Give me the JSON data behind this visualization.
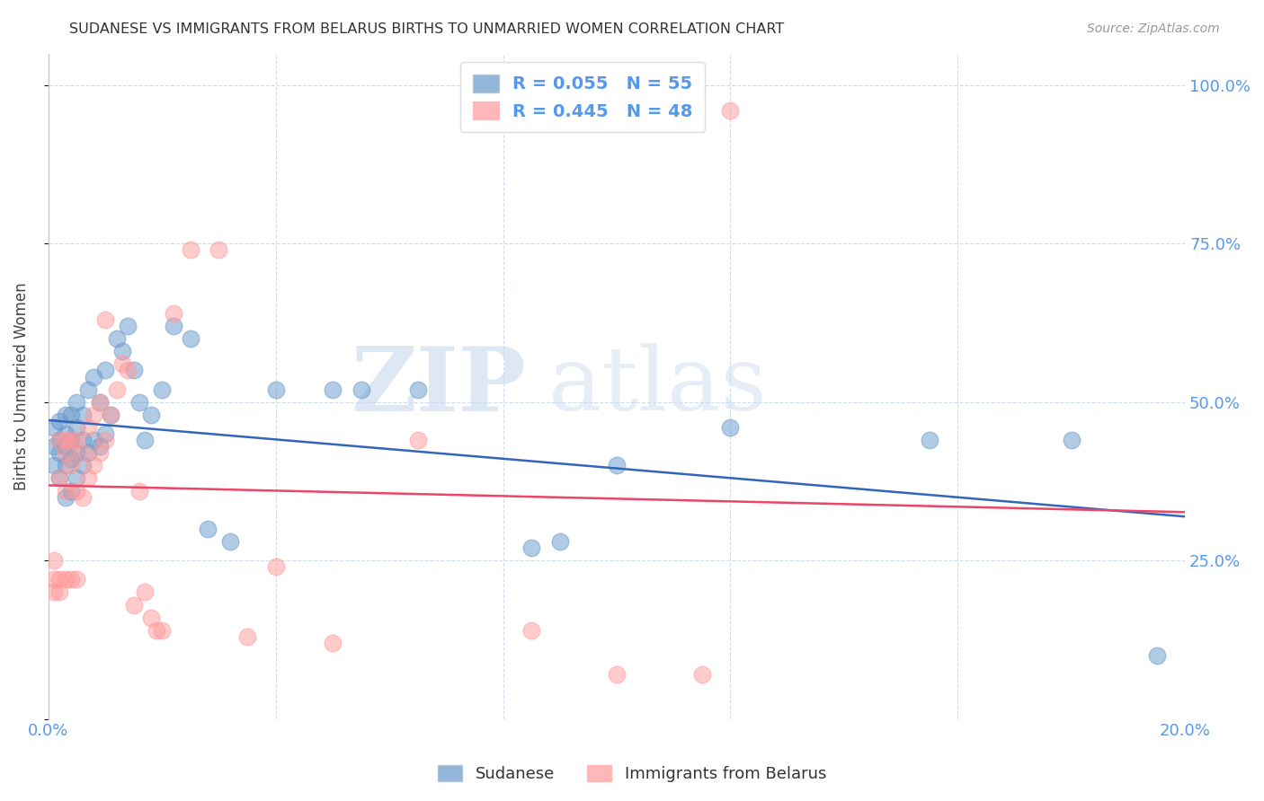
{
  "title": "SUDANESE VS IMMIGRANTS FROM BELARUS BIRTHS TO UNMARRIED WOMEN CORRELATION CHART",
  "source": "Source: ZipAtlas.com",
  "ylabel": "Births to Unmarried Women",
  "xlim": [
    0.0,
    0.2
  ],
  "ylim": [
    0.0,
    1.05
  ],
  "yticks": [
    0.0,
    0.25,
    0.5,
    0.75,
    1.0
  ],
  "ytick_labels": [
    "",
    "25.0%",
    "50.0%",
    "75.0%",
    "100.0%"
  ],
  "xticks": [
    0.0,
    0.04,
    0.08,
    0.12,
    0.16,
    0.2
  ],
  "blue_color": "#6699CC",
  "pink_color": "#FF9999",
  "trend_blue": "#3366BB",
  "trend_pink": "#EE4466",
  "watermark_zip": "ZIP",
  "watermark_atlas": "atlas",
  "blue_scatter_x": [
    0.001,
    0.001,
    0.001,
    0.002,
    0.002,
    0.002,
    0.002,
    0.003,
    0.003,
    0.003,
    0.003,
    0.003,
    0.004,
    0.004,
    0.004,
    0.004,
    0.005,
    0.005,
    0.005,
    0.005,
    0.006,
    0.006,
    0.006,
    0.007,
    0.007,
    0.008,
    0.008,
    0.009,
    0.009,
    0.01,
    0.01,
    0.011,
    0.012,
    0.013,
    0.014,
    0.015,
    0.016,
    0.017,
    0.018,
    0.02,
    0.022,
    0.025,
    0.028,
    0.032,
    0.04,
    0.05,
    0.055,
    0.065,
    0.085,
    0.09,
    0.1,
    0.12,
    0.155,
    0.18,
    0.195
  ],
  "blue_scatter_y": [
    0.4,
    0.43,
    0.46,
    0.38,
    0.42,
    0.44,
    0.47,
    0.35,
    0.4,
    0.43,
    0.45,
    0.48,
    0.36,
    0.41,
    0.44,
    0.48,
    0.38,
    0.42,
    0.46,
    0.5,
    0.4,
    0.44,
    0.48,
    0.42,
    0.52,
    0.44,
    0.54,
    0.43,
    0.5,
    0.45,
    0.55,
    0.48,
    0.6,
    0.58,
    0.62,
    0.55,
    0.5,
    0.44,
    0.48,
    0.52,
    0.62,
    0.6,
    0.3,
    0.28,
    0.52,
    0.52,
    0.52,
    0.52,
    0.27,
    0.28,
    0.4,
    0.46,
    0.44,
    0.44,
    0.1
  ],
  "pink_scatter_x": [
    0.001,
    0.001,
    0.001,
    0.002,
    0.002,
    0.002,
    0.002,
    0.003,
    0.003,
    0.003,
    0.003,
    0.004,
    0.004,
    0.004,
    0.005,
    0.005,
    0.005,
    0.006,
    0.006,
    0.007,
    0.007,
    0.008,
    0.008,
    0.009,
    0.009,
    0.01,
    0.01,
    0.011,
    0.012,
    0.013,
    0.014,
    0.015,
    0.016,
    0.017,
    0.018,
    0.019,
    0.02,
    0.022,
    0.025,
    0.03,
    0.035,
    0.04,
    0.05,
    0.065,
    0.085,
    0.1,
    0.115,
    0.12
  ],
  "pink_scatter_y": [
    0.2,
    0.22,
    0.25,
    0.2,
    0.22,
    0.38,
    0.44,
    0.22,
    0.36,
    0.42,
    0.44,
    0.22,
    0.4,
    0.44,
    0.22,
    0.36,
    0.44,
    0.35,
    0.42,
    0.38,
    0.46,
    0.4,
    0.48,
    0.42,
    0.5,
    0.44,
    0.63,
    0.48,
    0.52,
    0.56,
    0.55,
    0.18,
    0.36,
    0.2,
    0.16,
    0.14,
    0.14,
    0.64,
    0.74,
    0.74,
    0.13,
    0.24,
    0.12,
    0.44,
    0.14,
    0.07,
    0.07,
    0.96
  ]
}
